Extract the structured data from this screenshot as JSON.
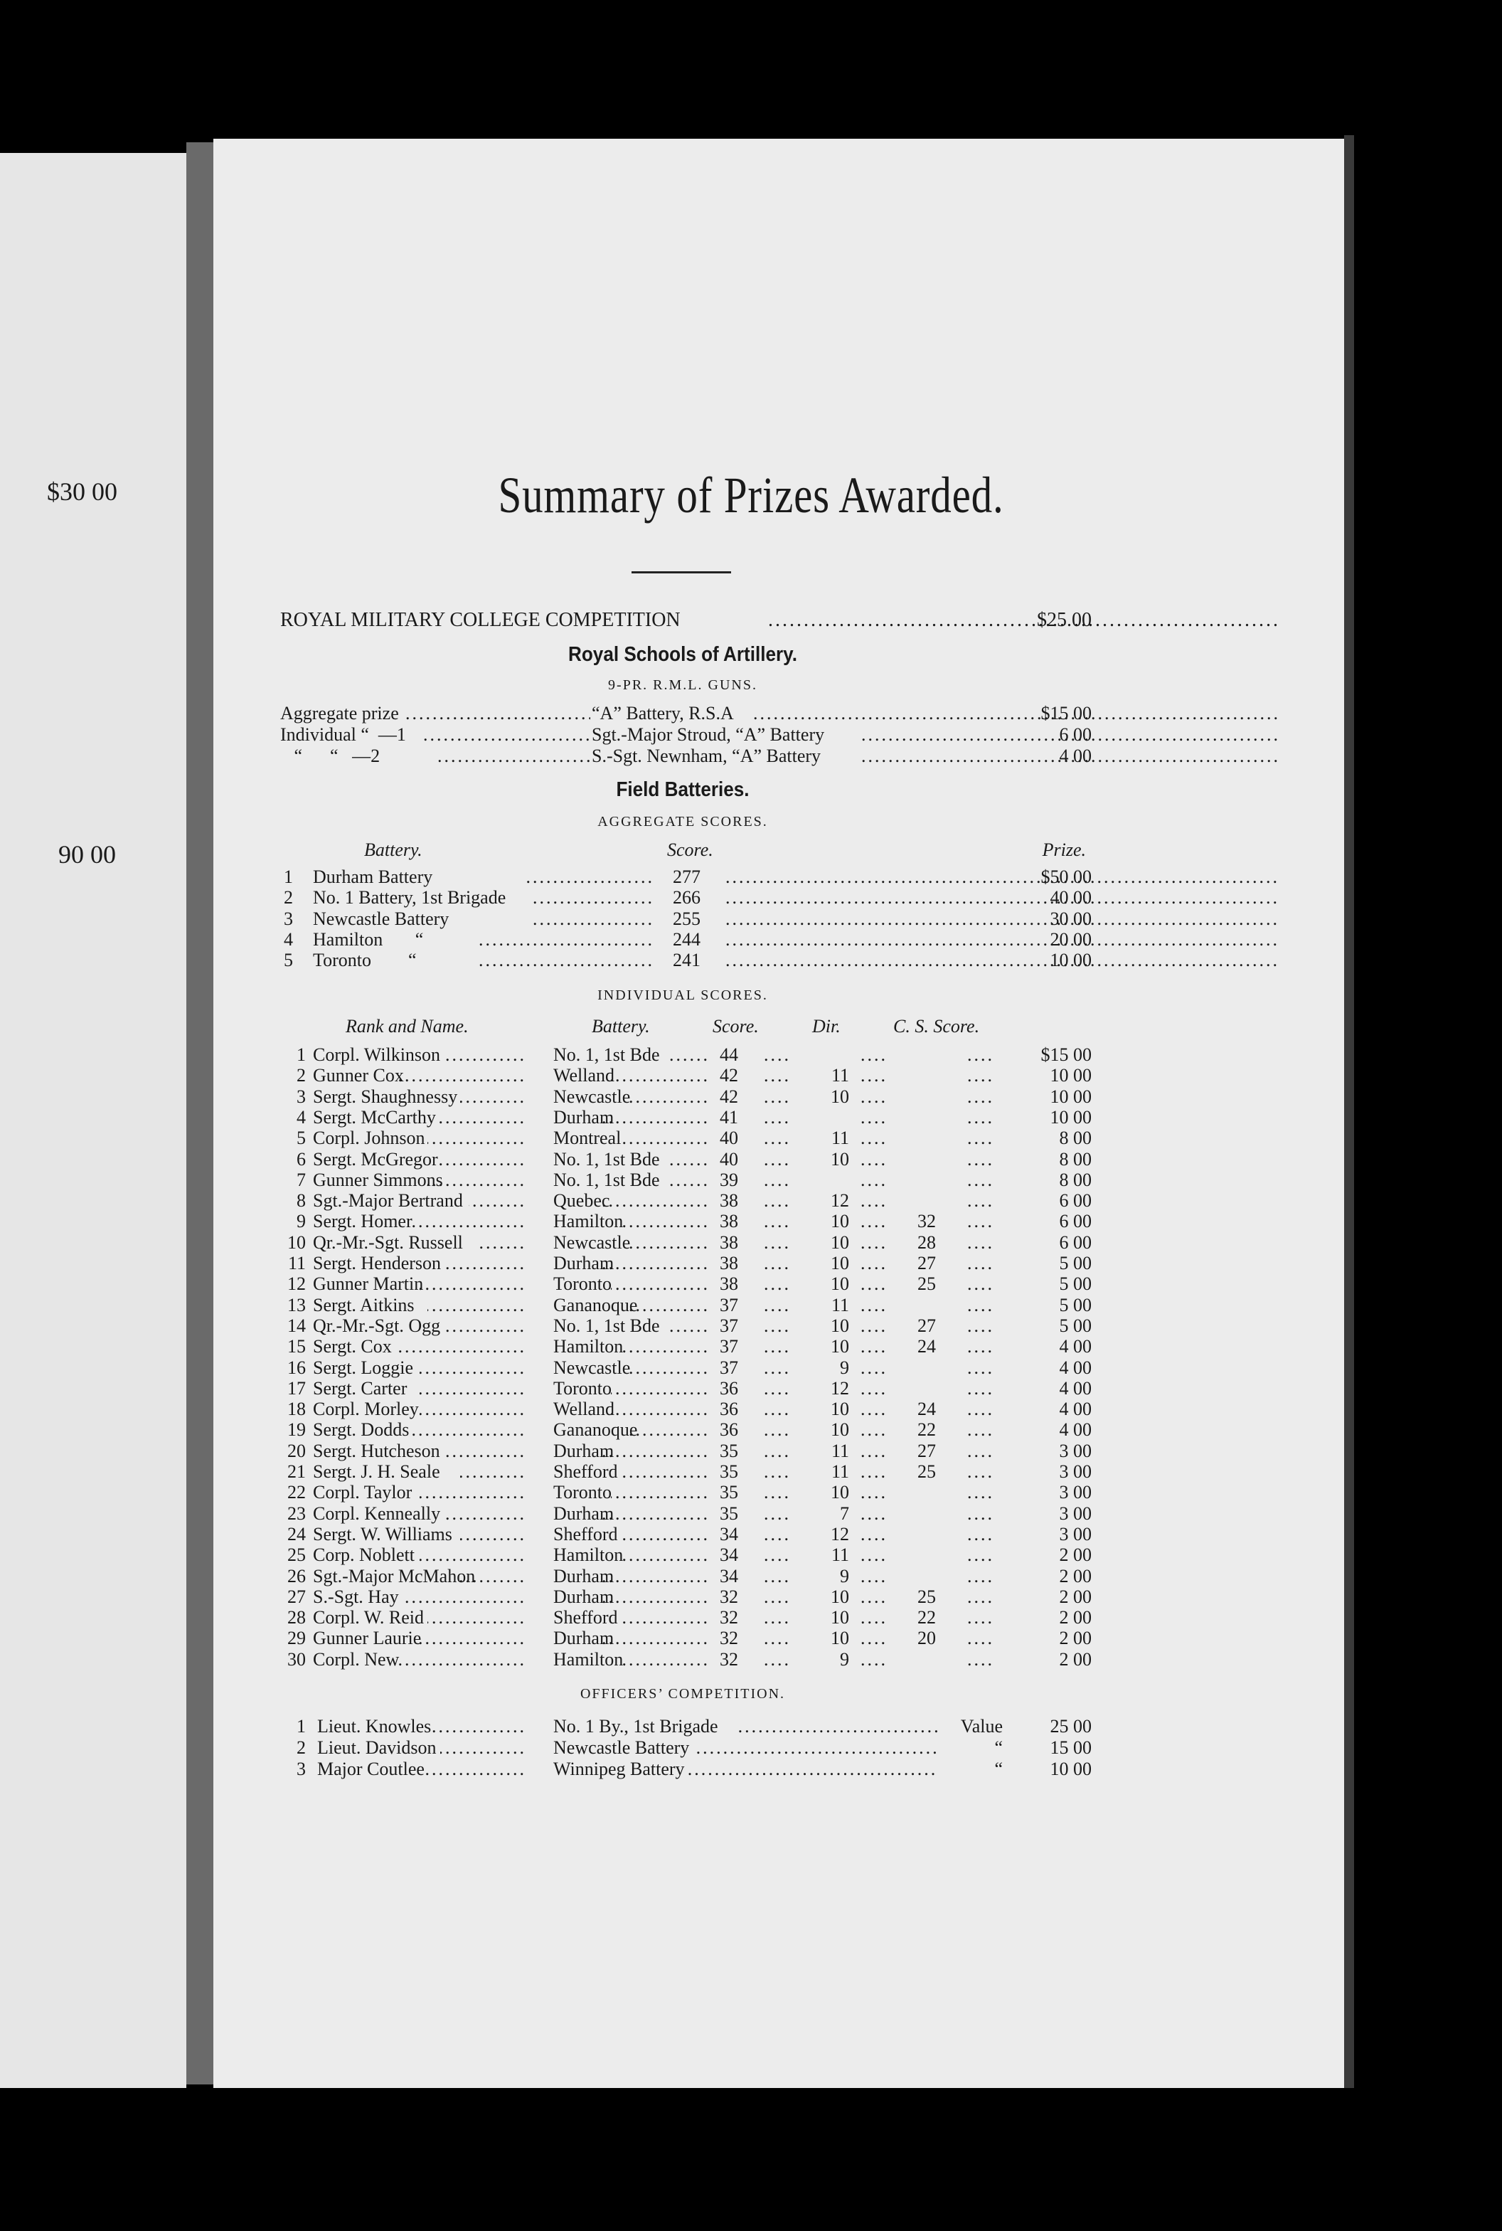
{
  "left_page": {
    "amounts": [
      "$30 00",
      "90 00"
    ]
  },
  "title": "Summary of Prizes Awarded.",
  "rmc": {
    "label": "ROYAL MILITARY COLLEGE COMPETITION",
    "prize": "$25 00"
  },
  "rsa": {
    "heading": "Royal Schools of Artillery.",
    "subheading": "9-PR. R.M.L. GUNS.",
    "rows": [
      {
        "label": "Aggregate prize",
        "winner": "“A” Battery, R.S.A",
        "prize": "$15 00"
      },
      {
        "label": "Individual “  —1",
        "winner": "Sgt.-Major Stroud, “A” Battery",
        "prize": "6 00"
      },
      {
        "label": "   “      “   —2",
        "winner": "S.-Sgt. Newnham, “A” Battery",
        "prize": "4 00"
      }
    ]
  },
  "field": {
    "heading": "Field Batteries.",
    "aggregate_title": "AGGREGATE SCORES.",
    "aggregate_headers": {
      "battery": "Battery.",
      "score": "Score.",
      "prize": "Prize."
    },
    "aggregate": [
      {
        "n": "1",
        "battery": "Durham Battery",
        "score": "277",
        "prize": "$50 00"
      },
      {
        "n": "2",
        "battery": "No. 1 Battery, 1st Brigade",
        "score": "266",
        "prize": "40 00"
      },
      {
        "n": "3",
        "battery": "Newcastle Battery",
        "score": "255",
        "prize": "30 00"
      },
      {
        "n": "4",
        "battery": "Hamilton       “",
        "score": "244",
        "prize": "20 00"
      },
      {
        "n": "5",
        "battery": "Toronto        “",
        "score": "241",
        "prize": "10 00"
      }
    ],
    "individual_title": "INDIVIDUAL SCORES.",
    "individual_headers": {
      "name": "Rank and Name.",
      "battery": "Battery.",
      "score": "Score.",
      "dir": "Dir.",
      "cs": "C. S. Score."
    },
    "individual": [
      {
        "n": "1",
        "name": "Corpl. Wilkinson",
        "battery": "No. 1, 1st Bde",
        "score": "44",
        "dir": "",
        "cs": "",
        "prize": "$15 00"
      },
      {
        "n": "2",
        "name": "Gunner Cox",
        "battery": "Welland",
        "score": "42",
        "dir": "11",
        "cs": "",
        "prize": "10 00"
      },
      {
        "n": "3",
        "name": "Sergt. Shaughnessy",
        "battery": "Newcastle",
        "score": "42",
        "dir": "10",
        "cs": "",
        "prize": "10 00"
      },
      {
        "n": "4",
        "name": "Sergt. McCarthy",
        "battery": "Durham",
        "score": "41",
        "dir": "",
        "cs": "",
        "prize": "10 00"
      },
      {
        "n": "5",
        "name": "Corpl. Johnson",
        "battery": "Montreal",
        "score": "40",
        "dir": "11",
        "cs": "",
        "prize": "8 00"
      },
      {
        "n": "6",
        "name": "Sergt. McGregor",
        "battery": "No. 1, 1st Bde",
        "score": "40",
        "dir": "10",
        "cs": "",
        "prize": "8 00"
      },
      {
        "n": "7",
        "name": "Gunner Simmons",
        "battery": "No. 1, 1st Bde",
        "score": "39",
        "dir": "",
        "cs": "",
        "prize": "8 00"
      },
      {
        "n": "8",
        "name": "Sgt.-Major Bertrand",
        "battery": "Quebec",
        "score": "38",
        "dir": "12",
        "cs": "",
        "prize": "6 00"
      },
      {
        "n": "9",
        "name": "Sergt. Homer",
        "battery": "Hamilton",
        "score": "38",
        "dir": "10",
        "cs": "32",
        "prize": "6 00"
      },
      {
        "n": "10",
        "name": "Qr.-Mr.-Sgt. Russell",
        "battery": "Newcastle",
        "score": "38",
        "dir": "10",
        "cs": "28",
        "prize": "6 00"
      },
      {
        "n": "11",
        "name": "Sergt. Henderson",
        "battery": "Durham",
        "score": "38",
        "dir": "10",
        "cs": "27",
        "prize": "5 00"
      },
      {
        "n": "12",
        "name": "Gunner Martin",
        "battery": "Toronto",
        "score": "38",
        "dir": "10",
        "cs": "25",
        "prize": "5 00"
      },
      {
        "n": "13",
        "name": "Sergt. Aitkins",
        "battery": "Gananoque",
        "score": "37",
        "dir": "11",
        "cs": "",
        "prize": "5 00"
      },
      {
        "n": "14",
        "name": "Qr.-Mr.-Sgt. Ogg",
        "battery": "No. 1, 1st Bde",
        "score": "37",
        "dir": "10",
        "cs": "27",
        "prize": "5 00"
      },
      {
        "n": "15",
        "name": "Sergt. Cox",
        "battery": "Hamilton",
        "score": "37",
        "dir": "10",
        "cs": "24",
        "prize": "4 00"
      },
      {
        "n": "16",
        "name": "Sergt. Loggie",
        "battery": "Newcastle",
        "score": "37",
        "dir": "9",
        "cs": "",
        "prize": "4 00"
      },
      {
        "n": "17",
        "name": "Sergt. Carter",
        "battery": "Toronto",
        "score": "36",
        "dir": "12",
        "cs": "",
        "prize": "4 00"
      },
      {
        "n": "18",
        "name": "Corpl. Morley",
        "battery": "Welland",
        "score": "36",
        "dir": "10",
        "cs": "24",
        "prize": "4 00"
      },
      {
        "n": "19",
        "name": "Sergt. Dodds",
        "battery": "Gananoque",
        "score": "36",
        "dir": "10",
        "cs": "22",
        "prize": "4 00"
      },
      {
        "n": "20",
        "name": "Sergt. Hutcheson",
        "battery": "Durham",
        "score": "35",
        "dir": "11",
        "cs": "27",
        "prize": "3 00"
      },
      {
        "n": "21",
        "name": "Sergt. J. H. Seale",
        "battery": "Shefford",
        "score": "35",
        "dir": "11",
        "cs": "25",
        "prize": "3 00"
      },
      {
        "n": "22",
        "name": "Corpl. Taylor",
        "battery": "Toronto",
        "score": "35",
        "dir": "10",
        "cs": "",
        "prize": "3 00"
      },
      {
        "n": "23",
        "name": "Corpl. Kenneally",
        "battery": "Durham",
        "score": "35",
        "dir": "7",
        "cs": "",
        "prize": "3 00"
      },
      {
        "n": "24",
        "name": "Sergt. W. Williams",
        "battery": "Shefford",
        "score": "34",
        "dir": "12",
        "cs": "",
        "prize": "3 00"
      },
      {
        "n": "25",
        "name": "Corp. Noblett",
        "battery": "Hamilton",
        "score": "34",
        "dir": "11",
        "cs": "",
        "prize": "2 00"
      },
      {
        "n": "26",
        "name": "Sgt.-Major McMahon",
        "battery": "Durham",
        "score": "34",
        "dir": "9",
        "cs": "",
        "prize": "2 00"
      },
      {
        "n": "27",
        "name": "S.-Sgt. Hay",
        "battery": "Durham",
        "score": "32",
        "dir": "10",
        "cs": "25",
        "prize": "2 00"
      },
      {
        "n": "28",
        "name": "Corpl. W. Reid",
        "battery": "Shefford",
        "score": "32",
        "dir": "10",
        "cs": "22",
        "prize": "2 00"
      },
      {
        "n": "29",
        "name": "Gunner Laurie",
        "battery": "Durham",
        "score": "32",
        "dir": "10",
        "cs": "20",
        "prize": "2 00"
      },
      {
        "n": "30",
        "name": "Corpl. New",
        "battery": "Hamilton",
        "score": "32",
        "dir": "9",
        "cs": "",
        "prize": "2 00"
      }
    ]
  },
  "officers": {
    "title": "OFFICERS’ COMPETITION.",
    "rows": [
      {
        "n": "1",
        "name": "Lieut. Knowles",
        "battery": "No. 1 By., 1st Brigade",
        "kind": "Value",
        "prize": "25 00"
      },
      {
        "n": "2",
        "name": "Lieut. Davidson",
        "battery": "Newcastle Battery",
        "kind": "“",
        "prize": "15 00"
      },
      {
        "n": "3",
        "name": "Major Coutlee",
        "battery": "Winnipeg Battery",
        "kind": "“",
        "prize": "10 00"
      }
    ]
  }
}
